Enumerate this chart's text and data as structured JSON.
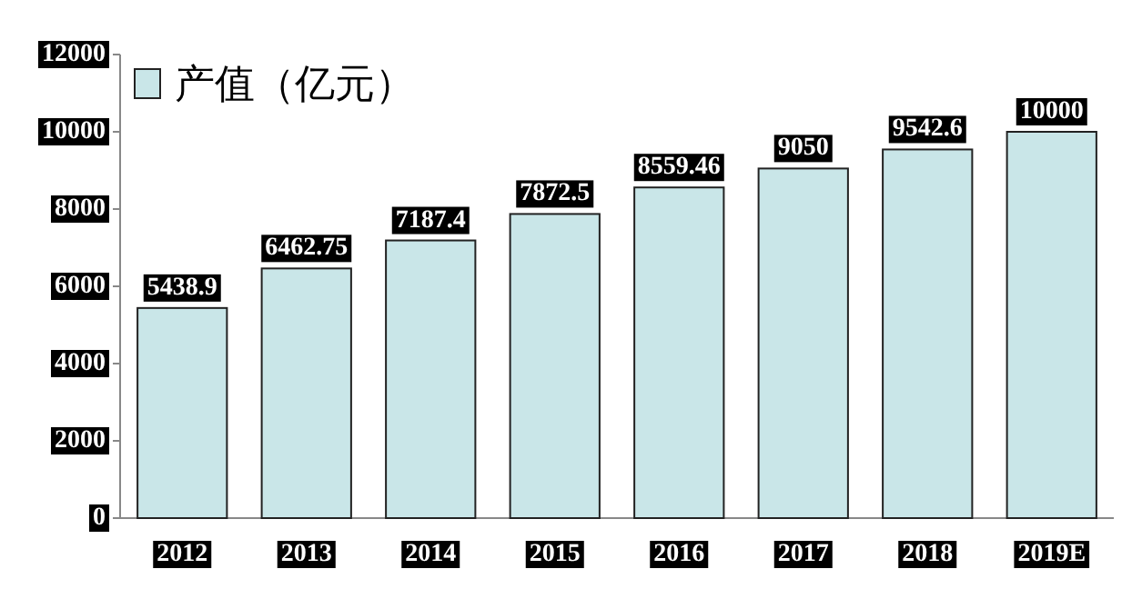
{
  "chart_data": {
    "type": "bar",
    "categories": [
      "2012",
      "2013",
      "2014",
      "2015",
      "2016",
      "2017",
      "2018",
      "2019E"
    ],
    "series": [
      {
        "name": "产值（亿元）",
        "color": "#c9e6e8",
        "values": [
          5438.9,
          6462.75,
          7187.4,
          7872.5,
          8559.46,
          9050,
          9542.6,
          10000
        ]
      }
    ],
    "ylim": [
      0,
      12000
    ],
    "yticks": [
      0,
      2000,
      4000,
      6000,
      8000,
      10000,
      12000
    ],
    "data_labels": true,
    "legend": "top left"
  }
}
